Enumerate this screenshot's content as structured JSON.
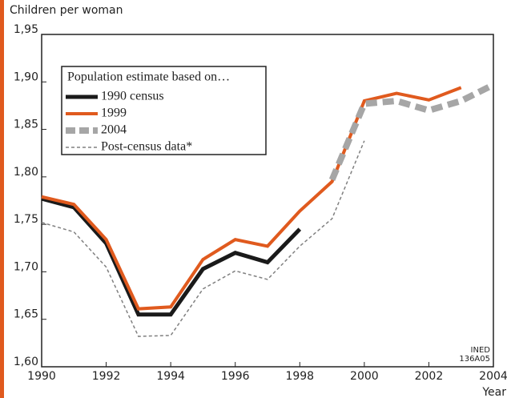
{
  "chart_data": {
    "type": "line",
    "y_label": "Children per woman",
    "x_label": "Year",
    "legend_title": "Population estimate based on…",
    "annotation": [
      "INED",
      "136A05"
    ],
    "x": [
      1990,
      1991,
      1992,
      1993,
      1994,
      1995,
      1996,
      1997,
      1998,
      1999,
      2000,
      2001,
      2002,
      2003,
      2004
    ],
    "xlim": [
      1990,
      2004
    ],
    "xticks": [
      1990,
      1992,
      1994,
      1996,
      1998,
      2000,
      2002,
      2004
    ],
    "ylim": [
      1.6,
      1.95
    ],
    "yticks": [
      {
        "value": 1.6,
        "label": "1,60"
      },
      {
        "value": 1.65,
        "label": "1,65"
      },
      {
        "value": 1.7,
        "label": "1,70"
      },
      {
        "value": 1.75,
        "label": "1,75"
      },
      {
        "value": 1.8,
        "label": "1,80"
      },
      {
        "value": 1.85,
        "label": "1,85"
      },
      {
        "value": 1.9,
        "label": "1,90"
      },
      {
        "value": 1.95,
        "label": "1,95"
      }
    ],
    "series": [
      {
        "name": "1990 census",
        "color": "#1a1a1a",
        "style": "solid",
        "width": 5,
        "values": [
          1.777,
          1.768,
          1.73,
          1.655,
          1.655,
          1.703,
          1.72,
          1.71,
          1.745,
          null,
          null,
          null,
          null,
          null,
          null
        ]
      },
      {
        "name": "1999",
        "color": "#e05a1e",
        "style": "solid",
        "width": 4,
        "values": [
          1.779,
          1.771,
          1.734,
          1.661,
          1.663,
          1.713,
          1.734,
          1.727,
          1.764,
          1.795,
          1.88,
          1.888,
          1.881,
          1.894,
          null
        ]
      },
      {
        "name": "2004",
        "color": "#a6a6a6",
        "style": "dashed",
        "width": 8,
        "values": [
          null,
          null,
          null,
          null,
          null,
          null,
          null,
          null,
          null,
          1.797,
          1.877,
          1.88,
          1.87,
          1.88,
          1.897
        ]
      },
      {
        "name": "Post-census data*",
        "color": "#808080",
        "style": "dotted",
        "width": 1.5,
        "values": [
          1.752,
          1.742,
          1.705,
          1.632,
          1.633,
          1.682,
          1.701,
          1.692,
          1.727,
          1.756,
          1.838,
          null,
          null,
          null,
          null
        ]
      }
    ]
  }
}
